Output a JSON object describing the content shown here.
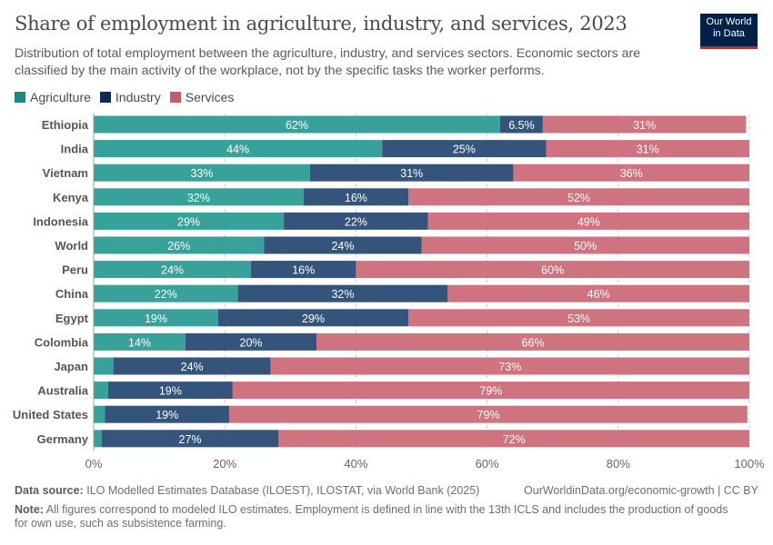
{
  "title": "Share of employment in agriculture, industry, and services, 2023",
  "subtitle": "Distribution of total employment between the agriculture, industry, and services sectors. Economic sectors are classified by the main activity of the workplace, not by the specific tasks the worker performs.",
  "logo": "Our World in Data",
  "footer": {
    "source_label": "Data source:",
    "source": "ILO Modelled Estimates Database (ILOEST), ILOSTAT, via World Bank (2025)",
    "url": "OurWorldinData.org/economic-growth | CC BY",
    "note_label": "Note:",
    "note": "All figures correspond to modeled ILO estimates. Employment is defined in line with the 13th ICLS and includes the production of goods for own use, such as subsistence farming."
  },
  "chart_data": {
    "type": "bar",
    "orientation": "horizontal",
    "stacked": true,
    "title": "Share of employment in agriculture, industry, and services, 2023",
    "xlim": [
      0,
      100
    ],
    "xticks": [
      "0%",
      "20%",
      "40%",
      "60%",
      "80%",
      "100%"
    ],
    "grid": true,
    "legend_position": "top-left",
    "categories": [
      "Ethiopia",
      "India",
      "Vietnam",
      "Kenya",
      "Indonesia",
      "World",
      "Peru",
      "China",
      "Egypt",
      "Colombia",
      "Japan",
      "Australia",
      "United States",
      "Germany"
    ],
    "series": [
      {
        "name": "Agriculture",
        "color": "#38a19a",
        "values": [
          62,
          44,
          33,
          32,
          29,
          26,
          24,
          22,
          19,
          14,
          3,
          2.2,
          1.7,
          1.2
        ]
      },
      {
        "name": "Industry",
        "color": "#35547b",
        "values": [
          6.5,
          25,
          31,
          16,
          22,
          24,
          16,
          32,
          29,
          20,
          24,
          19,
          19,
          27
        ]
      },
      {
        "name": "Services",
        "color": "#cf7381",
        "values": [
          31,
          31,
          36,
          52,
          49,
          50,
          60,
          46,
          53,
          66,
          73,
          79,
          79,
          72
        ]
      }
    ]
  }
}
